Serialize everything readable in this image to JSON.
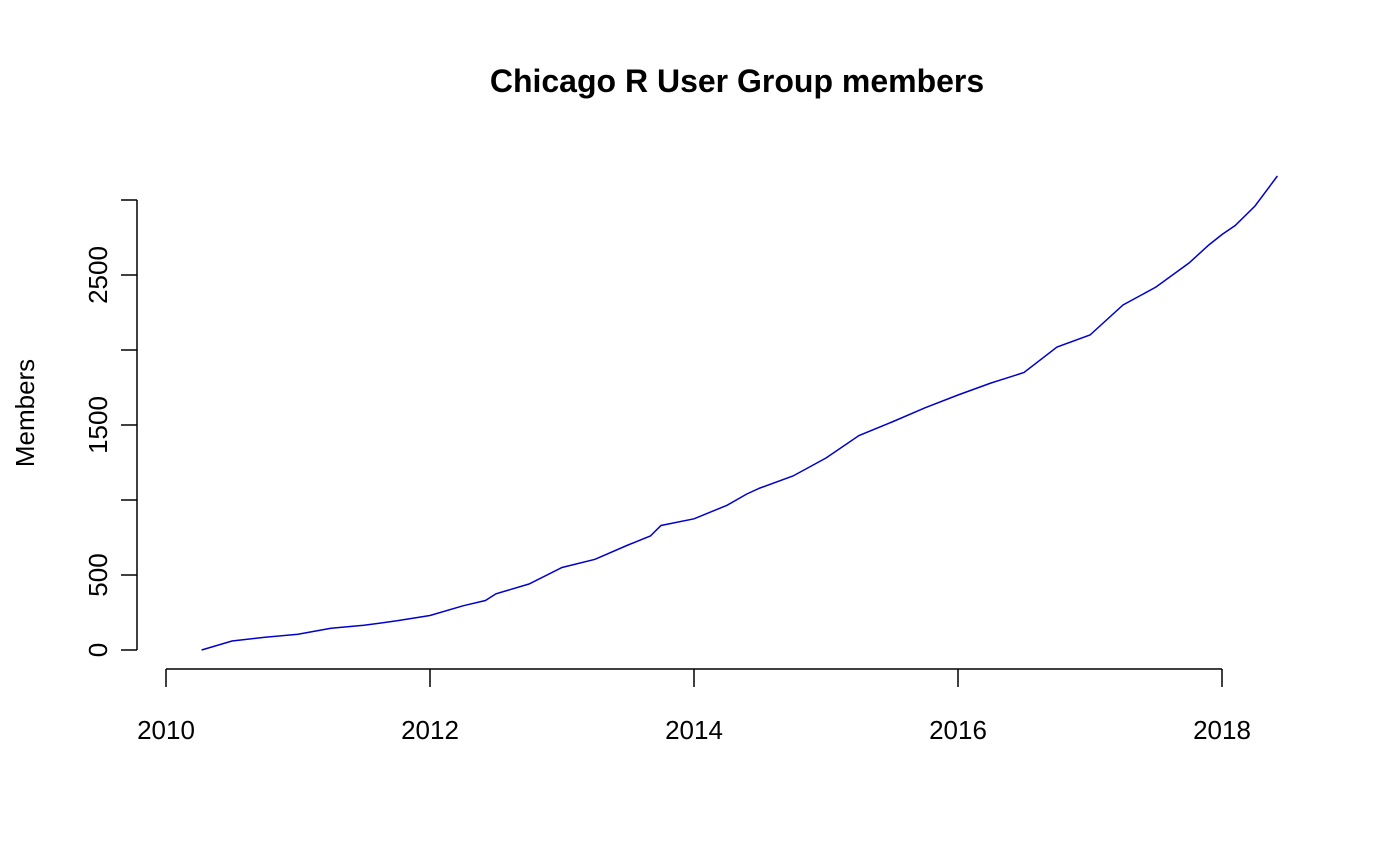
{
  "chart_data": {
    "type": "line",
    "title": "Chicago R User Group members",
    "xlabel": "",
    "ylabel": "Members",
    "xlim": [
      2010.0,
      2018.0
    ],
    "ylim": [
      0,
      3000
    ],
    "x_ticks": [
      2010,
      2012,
      2014,
      2016,
      2018
    ],
    "y_ticks": [
      0,
      500,
      1500,
      2500
    ],
    "grid": false,
    "legend": "none",
    "series": [
      {
        "color": "#0000cd",
        "x": [
          2010.27,
          2010.5,
          2010.75,
          2011.0,
          2011.25,
          2011.5,
          2011.75,
          2012.0,
          2012.25,
          2012.42,
          2012.5,
          2012.75,
          2013.0,
          2013.25,
          2013.5,
          2013.67,
          2013.75,
          2014.0,
          2014.25,
          2014.4,
          2014.5,
          2014.75,
          2015.0,
          2015.25,
          2015.5,
          2015.75,
          2016.0,
          2016.25,
          2016.5,
          2016.75,
          2017.0,
          2017.25,
          2017.5,
          2017.75,
          2017.9,
          2018.0,
          2018.1,
          2018.25,
          2018.42
        ],
        "y": [
          0,
          60,
          85,
          105,
          145,
          165,
          195,
          230,
          295,
          330,
          375,
          440,
          550,
          605,
          700,
          760,
          830,
          875,
          965,
          1040,
          1080,
          1160,
          1280,
          1430,
          1520,
          1615,
          1700,
          1780,
          1850,
          2020,
          2100,
          2300,
          2420,
          2580,
          2700,
          2770,
          2830,
          2960,
          3160
        ]
      }
    ]
  }
}
